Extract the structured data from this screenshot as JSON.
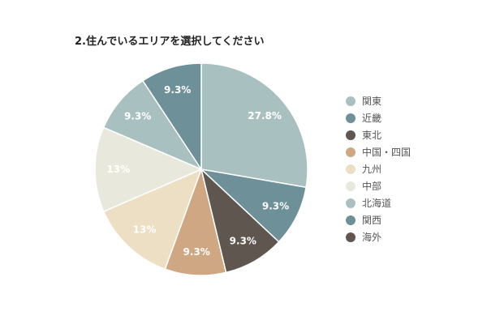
{
  "chart_data": {
    "type": "pie",
    "title": "2.住んでいるエリアを選択してください",
    "slices": [
      {
        "name": "関東",
        "value": 27.8,
        "label": "27.8%",
        "color": "#a8c1c0"
      },
      {
        "name": "近畿",
        "value": 9.3,
        "label": "9.3%",
        "color": "#6e9098"
      },
      {
        "name": "東北",
        "value": 9.3,
        "label": "9.3%",
        "color": "#5f5650"
      },
      {
        "name": "中国・四国",
        "value": 9.3,
        "label": "9.3%",
        "color": "#cfa883"
      },
      {
        "name": "九州",
        "value": 13,
        "label": "13%",
        "color": "#ecdfc4"
      },
      {
        "name": "中部",
        "value": 13,
        "label": "13%",
        "color": "#e8e8dc"
      },
      {
        "name": "北海道",
        "value": 9.3,
        "label": "9.3%",
        "color": "#a8c1c0"
      },
      {
        "name": "関西",
        "value": 9.3,
        "label": "9.3%",
        "color": "#6e9098"
      },
      {
        "name": "海外",
        "value": 0,
        "label": "",
        "color": "#5f5650"
      }
    ],
    "legend_position": "right"
  }
}
